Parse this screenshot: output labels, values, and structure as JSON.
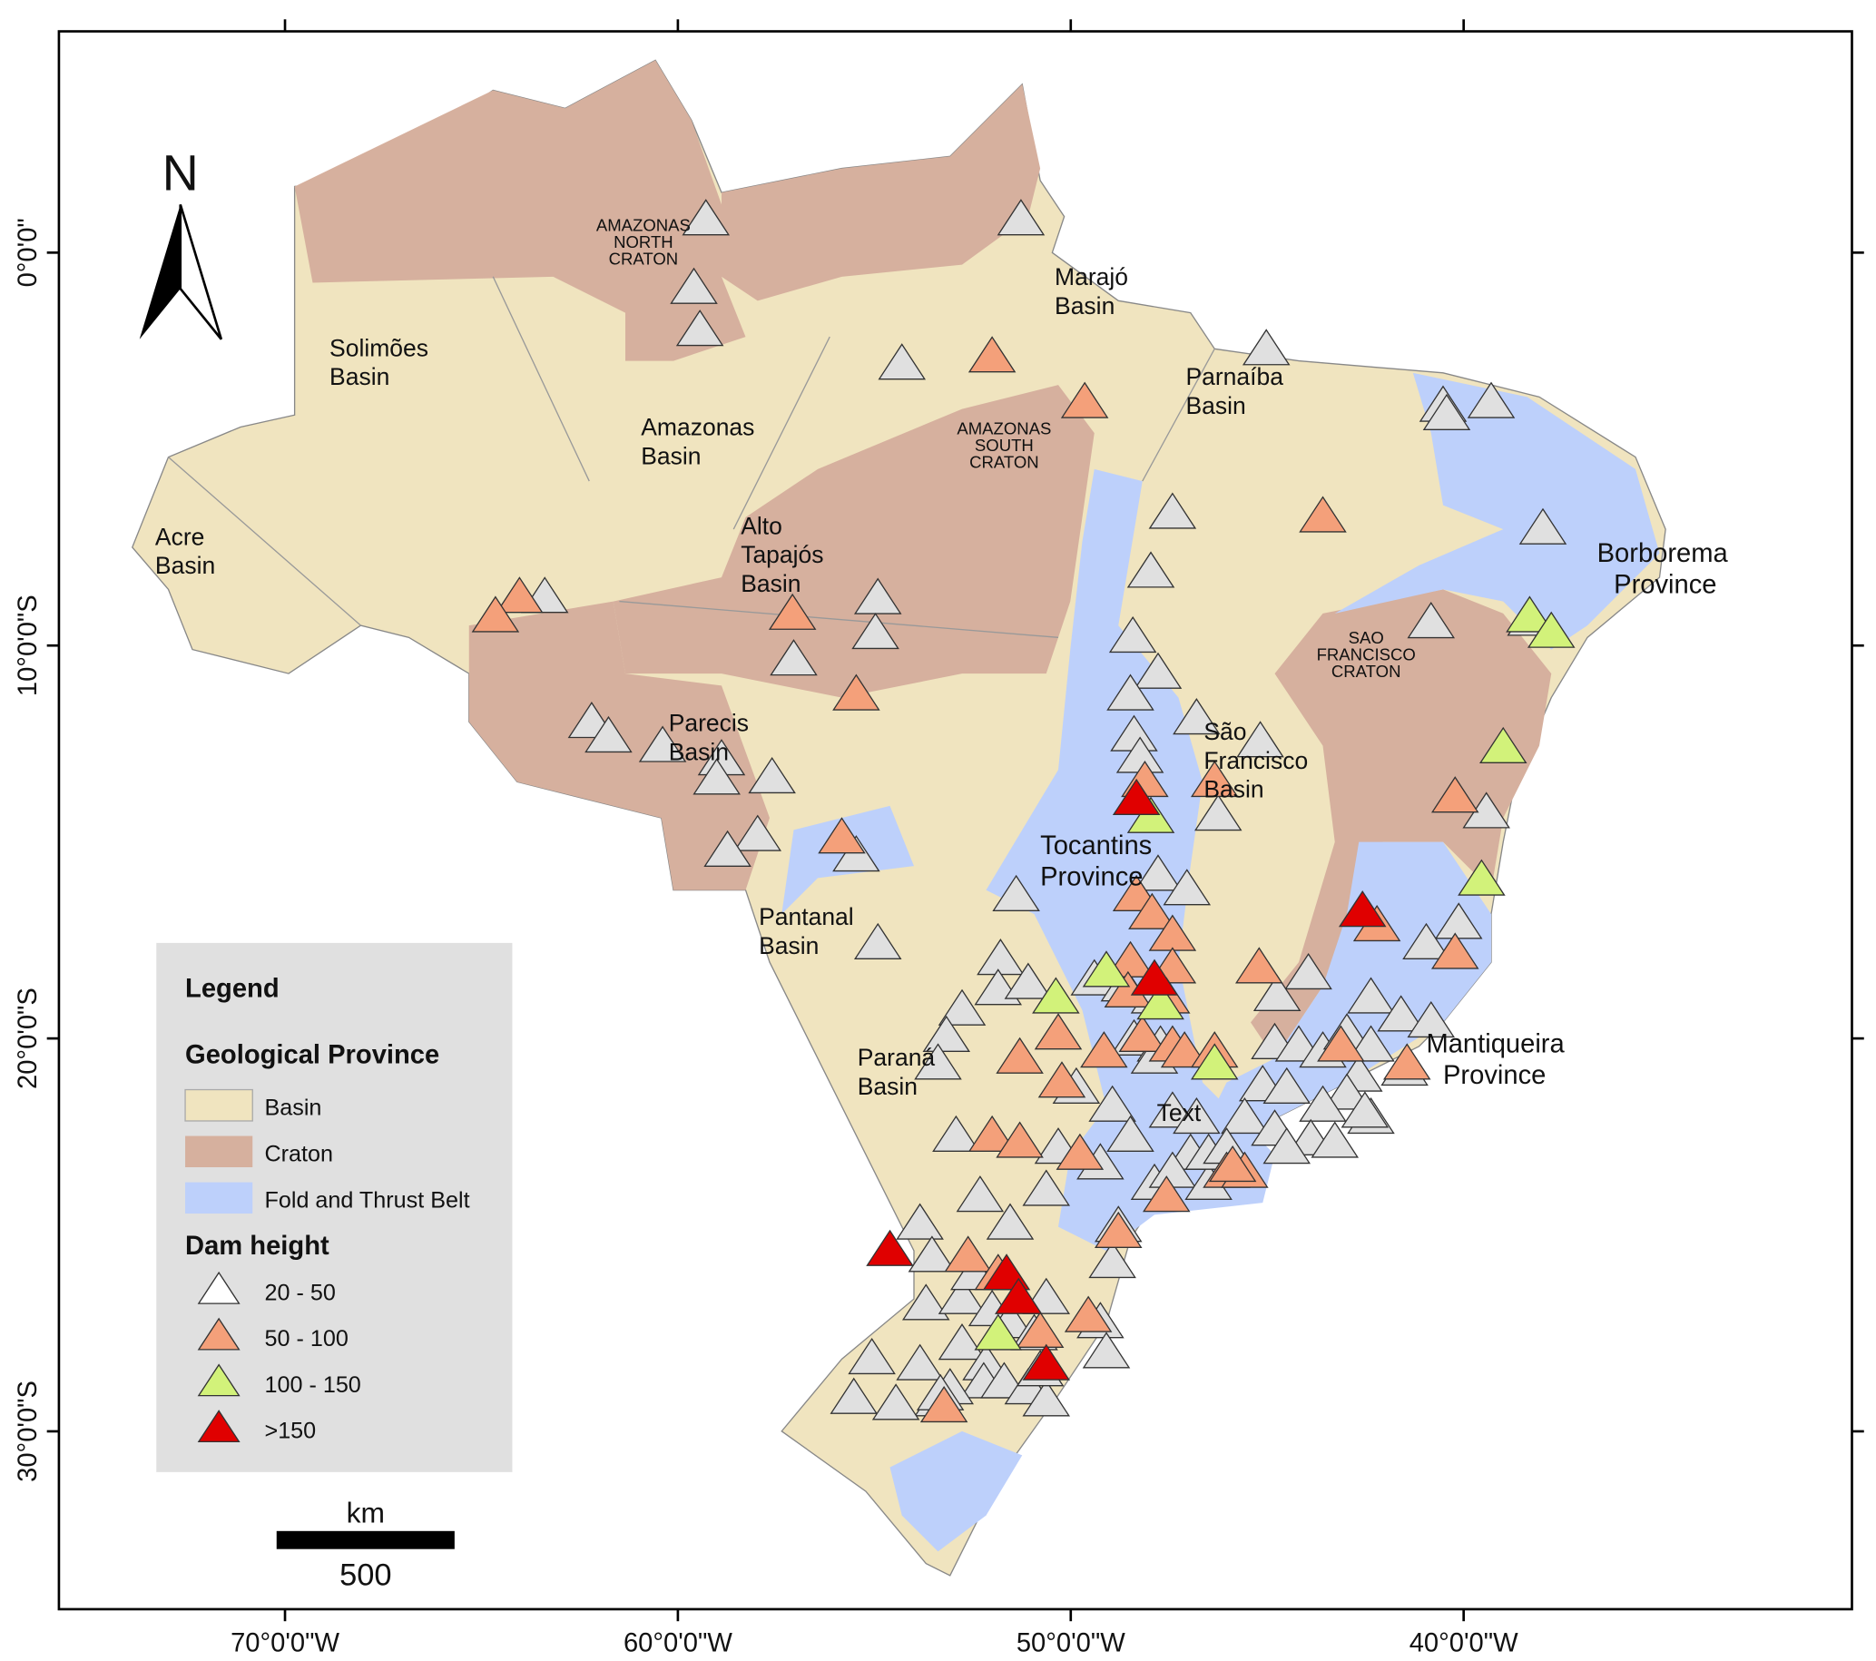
{
  "colors": {
    "basin": "#f0e4bf",
    "craton": "#d6b09e",
    "fold_belt": "#bdd0fb",
    "legend_bg": "#e0e0e0",
    "dam_20_50": "#e0e0e0",
    "dam_50_100": "#f4a07a",
    "dam_100_150": "#d2f27a",
    "dam_150_plus": "#e00000"
  },
  "axes": {
    "x_ticks": [
      "70°0'0\"W",
      "60°0'0\"W",
      "50°0'0\"W",
      "40°0'0\"W"
    ],
    "x_values": [
      -70,
      -60,
      -50,
      -40
    ],
    "y_ticks": [
      "0°0'0\"",
      "10°0'0\"S",
      "20°0'0\"S",
      "30°0'0\"S"
    ],
    "y_values": [
      0,
      -10,
      -20,
      -30
    ]
  },
  "north_arrow": "N",
  "scale_bar": {
    "unit": "km",
    "value": "500"
  },
  "labels": {
    "amazonas_north": [
      "AMAZONAS",
      "NORTH",
      "CRATON"
    ],
    "amazonas_south": [
      "AMAZONAS",
      "SOUTH",
      "CRATON"
    ],
    "sao_francisco_craton": [
      "SAO",
      "FRANCISCO",
      "CRATON"
    ],
    "solimoes": [
      "Solimões",
      "Basin"
    ],
    "amazonas": [
      "Amazonas",
      "Basin"
    ],
    "acre": [
      "Acre",
      "Basin"
    ],
    "alto_tapajos": [
      "Alto",
      "Tapajós",
      "Basin"
    ],
    "marajo": [
      "Marajó",
      "Basin"
    ],
    "parnaiba": [
      "Parnaíba",
      "Basin"
    ],
    "parecis": [
      "Parecis",
      "Basin"
    ],
    "pantanal": [
      "Pantanal",
      "Basin"
    ],
    "parana": [
      "Paraná",
      "Basin"
    ],
    "tocantins": [
      "Tocantins",
      "Province"
    ],
    "sao_francisco": [
      "São",
      "Francisco",
      "Basin"
    ],
    "borborema": [
      "Borborema",
      "Province"
    ],
    "mantiqueira": [
      "Mantiqueira",
      "Province"
    ],
    "text_placeholder": "Text"
  },
  "legend": {
    "title": "Legend",
    "province_title": "Geological Province",
    "provinces": [
      {
        "label": "Basin",
        "key": "basin"
      },
      {
        "label": "Craton",
        "key": "craton"
      },
      {
        "label": "Fold and Thrust Belt",
        "key": "fold_belt"
      }
    ],
    "dam_title": "Dam height",
    "dam_classes": [
      {
        "label": "20 - 50",
        "key": "dam_20_50"
      },
      {
        "label": "50 - 100",
        "key": "dam_50_100"
      },
      {
        "label": "100 - 150",
        "key": "dam_100_150"
      },
      {
        "label": ">150",
        "key": "dam_150_plus"
      }
    ]
  },
  "dams_px": "see script"
}
